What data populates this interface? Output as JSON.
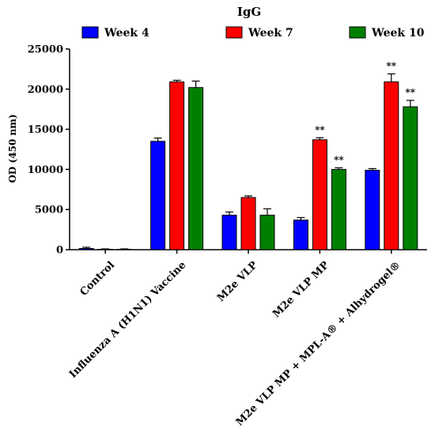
{
  "chart_data": {
    "type": "bar",
    "title": "IgG",
    "xlabel": "",
    "ylabel": "OD (450 nm)",
    "ylim": [
      0,
      25000
    ],
    "yticks": [
      0,
      5000,
      10000,
      15000,
      20000,
      25000
    ],
    "ytick_labels": [
      "0",
      "5000",
      "10000",
      "15000",
      "20000",
      "25000"
    ],
    "grid": false,
    "legend_position": "top",
    "categories": [
      "Control",
      "Influenza A (H1N1) Vaccine",
      "M2e VLP",
      "M2e VLP MP",
      "M2e VLP MP + MPL-A® + Alhydrogel®"
    ],
    "series": [
      {
        "name": "Week 4",
        "color": "#0000ff",
        "values": [
          150,
          13500,
          4300,
          3700,
          9900
        ],
        "errors": [
          150,
          400,
          400,
          300,
          200
        ],
        "annotations": [
          "",
          "",
          "",
          "",
          ""
        ]
      },
      {
        "name": "Week 7",
        "color": "#ff0000",
        "values": [
          50,
          20900,
          6500,
          13700,
          20900
        ],
        "errors": [
          50,
          200,
          200,
          250,
          1000
        ],
        "annotations": [
          "",
          "",
          "",
          "**",
          "**"
        ]
      },
      {
        "name": "Week 10",
        "color": "#008000",
        "values": [
          50,
          20200,
          4300,
          10000,
          17800
        ],
        "errors": [
          50,
          800,
          800,
          200,
          800
        ],
        "annotations": [
          "",
          "",
          "",
          "**",
          "**"
        ]
      }
    ]
  }
}
